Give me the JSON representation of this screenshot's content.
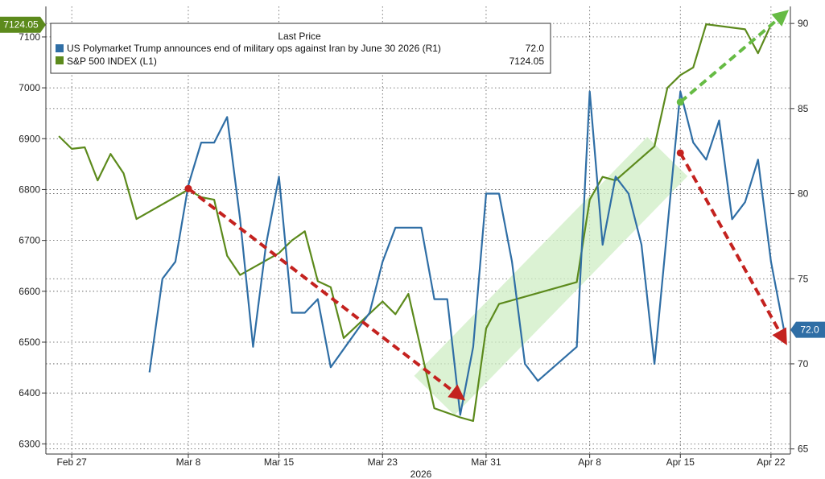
{
  "chart_data": {
    "type": "line",
    "xlabel": "2026",
    "x_ticks": [
      "Feb 27",
      "Mar 8",
      "Mar 15",
      "Mar 23",
      "Mar 31",
      "Apr 8",
      "Apr 15",
      "Apr 22"
    ],
    "left_axis": {
      "ylim": [
        6280,
        7160
      ],
      "ticks": [
        6300,
        6400,
        6500,
        6600,
        6700,
        6800,
        6900,
        7000,
        7100
      ]
    },
    "right_axis": {
      "ylim": [
        64.7,
        91
      ],
      "ticks": [
        65,
        70,
        75,
        80,
        85,
        90
      ]
    },
    "grid": true,
    "legend": {
      "title": "Last Price",
      "placement": "top-left",
      "entries": [
        {
          "label": "US Polymarket Trump announces end of military ops against Iran by June 30 2026  (R1)",
          "value": "72.0",
          "color": "#2f6ea5"
        },
        {
          "label": "S&P 500 INDEX  (L1)",
          "value": "7124.05",
          "color": "#5c8a1c"
        }
      ]
    },
    "last_value_labels": {
      "spx": "7124.05",
      "poly": "72.0"
    },
    "series": [
      {
        "key": "spx",
        "name": "S&P 500 INDEX (L1)",
        "axis": "left",
        "color": "#5c8a1c",
        "points": [
          [
            "2026-02-26",
            6905
          ],
          [
            "2026-02-27",
            6880
          ],
          [
            "2026-02-28",
            6883
          ],
          [
            "2026-03-01",
            6818
          ],
          [
            "2026-03-02",
            6870
          ],
          [
            "2026-03-03",
            6832
          ],
          [
            "2026-03-04",
            6742
          ],
          [
            "2026-03-08",
            6800
          ],
          [
            "2026-03-09",
            6785
          ],
          [
            "2026-03-10",
            6780
          ],
          [
            "2026-03-11",
            6670
          ],
          [
            "2026-03-12",
            6632
          ],
          [
            "2026-03-15",
            6675
          ],
          [
            "2026-03-16",
            6700
          ],
          [
            "2026-03-17",
            6718
          ],
          [
            "2026-03-18",
            6620
          ],
          [
            "2026-03-19",
            6608
          ],
          [
            "2026-03-20",
            6508
          ],
          [
            "2026-03-23",
            6580
          ],
          [
            "2026-03-24",
            6555
          ],
          [
            "2026-03-25",
            6595
          ],
          [
            "2026-03-27",
            6370
          ],
          [
            "2026-03-29",
            6352
          ],
          [
            "2026-03-30",
            6345
          ],
          [
            "2026-03-31",
            6527
          ],
          [
            "2026-04-01",
            6575
          ],
          [
            "2026-04-07",
            6618
          ],
          [
            "2026-04-08",
            6780
          ],
          [
            "2026-04-09",
            6825
          ],
          [
            "2026-04-10",
            6818
          ],
          [
            "2026-04-13",
            6885
          ],
          [
            "2026-04-14",
            7000
          ],
          [
            "2026-04-15",
            7025
          ],
          [
            "2026-04-16",
            7040
          ],
          [
            "2026-04-17",
            7125
          ],
          [
            "2026-04-20",
            7115
          ],
          [
            "2026-04-21",
            7068
          ],
          [
            "2026-04-22",
            7124.05
          ]
        ]
      },
      {
        "key": "poly",
        "name": "US Polymarket Trump announces end of military ops against Iran by June 30 2026 (R1)",
        "axis": "right",
        "color": "#2f6ea5",
        "points": [
          [
            "2026-03-05",
            69.5
          ],
          [
            "2026-03-06",
            75
          ],
          [
            "2026-03-07",
            76
          ],
          [
            "2026-03-08",
            80.5
          ],
          [
            "2026-03-09",
            83
          ],
          [
            "2026-03-10",
            83
          ],
          [
            "2026-03-11",
            84.5
          ],
          [
            "2026-03-12",
            78.5
          ],
          [
            "2026-03-13",
            71
          ],
          [
            "2026-03-14",
            77
          ],
          [
            "2026-03-15",
            81
          ],
          [
            "2026-03-16",
            73
          ],
          [
            "2026-03-17",
            73
          ],
          [
            "2026-03-18",
            73.8
          ],
          [
            "2026-03-19",
            69.8
          ],
          [
            "2026-03-22",
            73
          ],
          [
            "2026-03-23",
            76
          ],
          [
            "2026-03-24",
            78
          ],
          [
            "2026-03-26",
            78
          ],
          [
            "2026-03-27",
            73.8
          ],
          [
            "2026-03-28",
            73.8
          ],
          [
            "2026-03-29",
            67
          ],
          [
            "2026-03-30",
            71
          ],
          [
            "2026-03-31",
            80
          ],
          [
            "2026-04-01",
            80
          ],
          [
            "2026-04-02",
            76
          ],
          [
            "2026-04-03",
            70
          ],
          [
            "2026-04-04",
            69
          ],
          [
            "2026-04-07",
            71
          ],
          [
            "2026-04-08",
            86
          ],
          [
            "2026-04-09",
            77
          ],
          [
            "2026-04-10",
            81
          ],
          [
            "2026-04-11",
            80
          ],
          [
            "2026-04-12",
            77
          ],
          [
            "2026-04-13",
            70
          ],
          [
            "2026-04-15",
            86
          ],
          [
            "2026-04-16",
            83
          ],
          [
            "2026-04-17",
            82
          ],
          [
            "2026-04-18",
            84.3
          ],
          [
            "2026-04-19",
            78.5
          ],
          [
            "2026-04-20",
            79.5
          ],
          [
            "2026-04-21",
            82
          ],
          [
            "2026-04-22",
            76
          ],
          [
            "2026-04-23",
            72
          ]
        ]
      }
    ],
    "annotations": [
      {
        "type": "arrow",
        "color": "#c4221f",
        "axis": "left",
        "from": [
          "2026-03-08",
          6802
        ],
        "to": [
          "2026-03-29",
          6393
        ]
      },
      {
        "type": "arrow",
        "color": "#c4221f",
        "axis": "left",
        "from": [
          "2026-04-15",
          6872
        ],
        "to": [
          "2026-04-23",
          6505
        ]
      },
      {
        "type": "arrow",
        "color": "#66bb44",
        "axis": "left",
        "from": [
          "2026-04-15",
          6972
        ],
        "to": [
          "2026-04-23",
          7145
        ]
      },
      {
        "type": "band",
        "color": "#cfeec4",
        "axis": "left",
        "from": [
          "2026-03-27",
          6395
        ],
        "to": [
          "2026-04-14",
          6865
        ]
      }
    ]
  }
}
